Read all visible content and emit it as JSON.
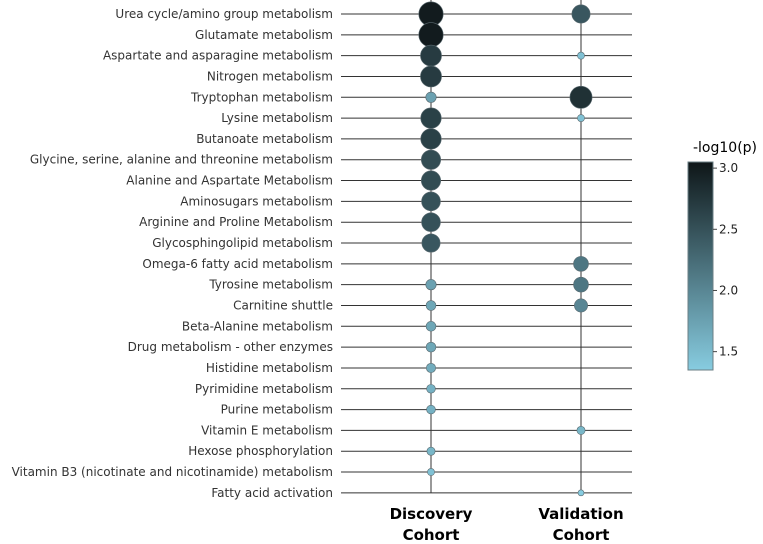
{
  "chart_data": {
    "type": "scatter",
    "title": "",
    "xlabel": "",
    "ylabel": "",
    "columns": [
      {
        "line1": "Discovery",
        "line2": "Cohort"
      },
      {
        "line1": "Validation",
        "line2": "Cohort"
      }
    ],
    "pathways": [
      "Urea cycle/amino group metabolism",
      "Glutamate metabolism",
      "Aspartate and asparagine metabolism",
      "Nitrogen metabolism",
      "Tryptophan metabolism",
      "Lysine metabolism",
      "Butanoate metabolism",
      "Glycine, serine, alanine and threonine metabolism",
      "Alanine and Aspartate Metabolism",
      "Aminosugars metabolism",
      "Arginine and Proline Metabolism",
      "Glycosphingolipid metabolism",
      "Omega-6 fatty acid metabolism",
      "Tyrosine metabolism",
      "Carnitine shuttle",
      "Beta-Alanine metabolism",
      "Drug metabolism - other enzymes",
      "Histidine metabolism",
      "Pyrimidine metabolism",
      "Purine metabolism",
      "Vitamin E metabolism",
      "Hexose phosphorylation",
      "Vitamin B3 (nicotinate and nicotinamide) metabolism",
      "Fatty acid activation"
    ],
    "series": [
      {
        "name": "Discovery Cohort",
        "neg_log10_p": [
          3.0,
          3.0,
          2.7,
          2.7,
          1.75,
          2.65,
          2.65,
          2.55,
          2.55,
          2.5,
          2.5,
          2.45,
          null,
          1.75,
          1.7,
          1.7,
          1.7,
          1.65,
          1.6,
          1.6,
          null,
          1.55,
          1.45,
          null
        ]
      },
      {
        "name": "Validation Cohort",
        "neg_log10_p": [
          2.45,
          null,
          1.45,
          null,
          2.8,
          1.45,
          null,
          null,
          null,
          null,
          null,
          null,
          2.15,
          2.15,
          2.0,
          null,
          null,
          null,
          null,
          null,
          1.55,
          null,
          null,
          1.3
        ]
      }
    ],
    "colorbar": {
      "title": "-log10(p)",
      "range": [
        1.35,
        3.05
      ],
      "ticks": [
        "3.0",
        "2.5",
        "2.0",
        "1.5"
      ],
      "tick_values": [
        3.0,
        2.5,
        2.0,
        1.5
      ],
      "colors": [
        "#87cce0",
        "#0e1618"
      ]
    }
  }
}
